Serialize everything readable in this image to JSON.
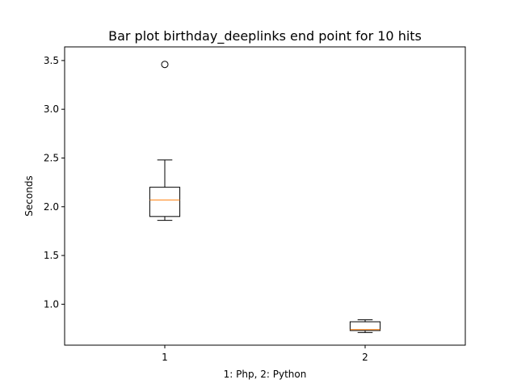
{
  "chart_data": {
    "type": "box",
    "title": "Bar plot birthday_deeplinks end point for 10 hits",
    "xlabel": "1: Php, 2: Python",
    "ylabel": "Seconds",
    "ylim": [
      0.58,
      3.64
    ],
    "yticks": [
      "1.0",
      "1.5",
      "2.0",
      "2.5",
      "3.0",
      "3.5"
    ],
    "ytick_values": [
      1.0,
      1.5,
      2.0,
      2.5,
      3.0,
      3.5
    ],
    "xticks": [
      "1",
      "2"
    ],
    "xtick_values": [
      1,
      2
    ],
    "xlim": [
      0.5,
      2.5
    ],
    "grid": false,
    "median_color": "#ff7f0e",
    "box_color": "#000000",
    "boxes": [
      {
        "position": 1,
        "whisker_low": 1.86,
        "q1": 1.9,
        "median": 2.07,
        "q3": 2.2,
        "whisker_high": 2.48,
        "outliers": [
          3.46
        ]
      },
      {
        "position": 2,
        "whisker_low": 0.71,
        "q1": 0.73,
        "median": 0.74,
        "q3": 0.82,
        "whisker_high": 0.84,
        "outliers": []
      }
    ]
  }
}
